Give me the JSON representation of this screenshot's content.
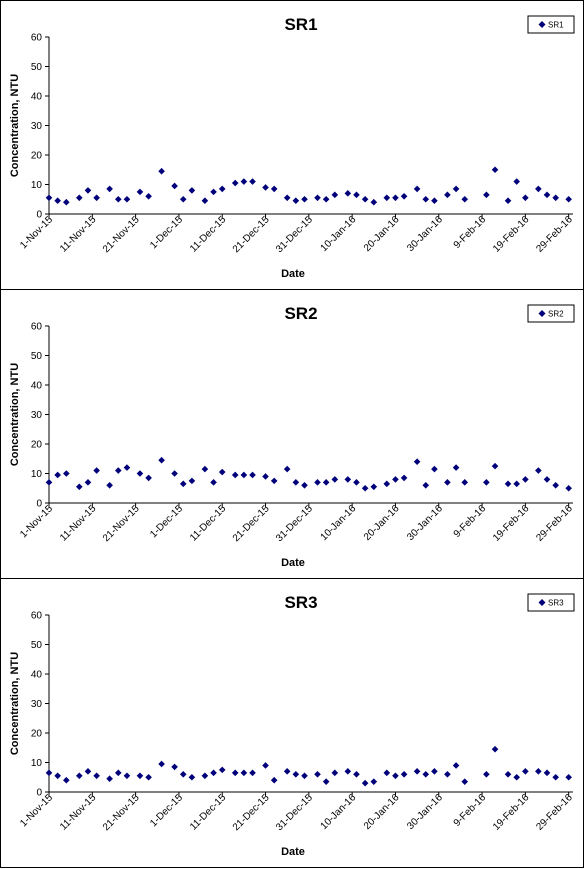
{
  "colors": {
    "marker": "#00007a",
    "axis": "#000000",
    "background": "#ffffff"
  },
  "chart_data": [
    {
      "type": "scatter",
      "title": "SR1",
      "xlabel": "Date",
      "ylabel": "Concentration, NTU",
      "ylim": [
        0,
        60
      ],
      "yticks": [
        "0",
        "10",
        "20",
        "30",
        "40",
        "50",
        "60"
      ],
      "xlim": [
        "2015-11-01",
        "2016-03-01"
      ],
      "xticks": [
        "1-Nov-15",
        "11-Nov-15",
        "21-Nov-15",
        "1-Dec-15",
        "11-Dec-15",
        "21-Dec-15",
        "31-Dec-15",
        "10-Jan-16",
        "20-Jan-16",
        "30-Jan-16",
        "9-Feb-16",
        "19-Feb-16",
        "29-Feb-16"
      ],
      "grid": false,
      "legend": "top-right",
      "series": [
        {
          "name": "SR1",
          "marker": "diamond",
          "x": [
            "2015-11-01",
            "2015-11-03",
            "2015-11-05",
            "2015-11-08",
            "2015-11-10",
            "2015-11-12",
            "2015-11-15",
            "2015-11-17",
            "2015-11-19",
            "2015-11-22",
            "2015-11-24",
            "2015-11-27",
            "2015-11-30",
            "2015-12-02",
            "2015-12-04",
            "2015-12-07",
            "2015-12-09",
            "2015-12-11",
            "2015-12-14",
            "2015-12-16",
            "2015-12-18",
            "2015-12-21",
            "2015-12-23",
            "2015-12-26",
            "2015-12-28",
            "2015-12-30",
            "2016-01-02",
            "2016-01-04",
            "2016-01-06",
            "2016-01-09",
            "2016-01-11",
            "2016-01-13",
            "2016-01-15",
            "2016-01-18",
            "2016-01-20",
            "2016-01-22",
            "2016-01-25",
            "2016-01-27",
            "2016-01-29",
            "2016-02-01",
            "2016-02-03",
            "2016-02-05",
            "2016-02-10",
            "2016-02-12",
            "2016-02-15",
            "2016-02-17",
            "2016-02-19",
            "2016-02-22",
            "2016-02-24",
            "2016-02-26",
            "2016-02-29"
          ],
          "y": [
            5.5,
            4.5,
            4,
            5.5,
            8,
            5.5,
            8.5,
            5,
            5,
            7.5,
            6,
            14.5,
            9.5,
            5,
            8,
            4.5,
            7.5,
            8.5,
            10.5,
            11,
            11,
            9,
            8.5,
            5.5,
            4.5,
            5,
            5.5,
            5,
            6.5,
            7,
            6.5,
            5,
            4,
            5.5,
            5.5,
            6,
            8.5,
            5,
            4.5,
            6.5,
            8.5,
            5,
            6.5,
            15,
            4.5,
            11,
            5.5,
            8.5,
            6.5,
            5.5,
            5
          ]
        }
      ]
    },
    {
      "type": "scatter",
      "title": "SR2",
      "xlabel": "Date",
      "ylabel": "Concentration, NTU",
      "ylim": [
        0,
        60
      ],
      "yticks": [
        "0",
        "10",
        "20",
        "30",
        "40",
        "50",
        "60"
      ],
      "xlim": [
        "2015-11-01",
        "2016-03-01"
      ],
      "xticks": [
        "1-Nov-15",
        "11-Nov-15",
        "21-Nov-15",
        "1-Dec-15",
        "11-Dec-15",
        "21-Dec-15",
        "31-Dec-15",
        "10-Jan-16",
        "20-Jan-16",
        "30-Jan-16",
        "9-Feb-16",
        "19-Feb-16",
        "29-Feb-16"
      ],
      "grid": false,
      "legend": "top-right",
      "series": [
        {
          "name": "SR2",
          "marker": "diamond",
          "x": [
            "2015-11-01",
            "2015-11-03",
            "2015-11-05",
            "2015-11-08",
            "2015-11-10",
            "2015-11-12",
            "2015-11-15",
            "2015-11-17",
            "2015-11-19",
            "2015-11-22",
            "2015-11-24",
            "2015-11-27",
            "2015-11-30",
            "2015-12-02",
            "2015-12-04",
            "2015-12-07",
            "2015-12-09",
            "2015-12-11",
            "2015-12-14",
            "2015-12-16",
            "2015-12-18",
            "2015-12-21",
            "2015-12-23",
            "2015-12-26",
            "2015-12-28",
            "2015-12-30",
            "2016-01-02",
            "2016-01-04",
            "2016-01-06",
            "2016-01-09",
            "2016-01-11",
            "2016-01-13",
            "2016-01-15",
            "2016-01-18",
            "2016-01-20",
            "2016-01-22",
            "2016-01-25",
            "2016-01-27",
            "2016-01-29",
            "2016-02-01",
            "2016-02-03",
            "2016-02-05",
            "2016-02-10",
            "2016-02-12",
            "2016-02-15",
            "2016-02-17",
            "2016-02-19",
            "2016-02-22",
            "2016-02-24",
            "2016-02-26",
            "2016-02-29"
          ],
          "y": [
            7,
            9.5,
            10,
            5.5,
            7,
            11,
            6,
            11,
            12,
            10,
            8.5,
            14.5,
            10,
            6.5,
            7.5,
            11.5,
            7,
            10.5,
            9.5,
            9.5,
            9.5,
            9,
            7.5,
            11.5,
            7,
            6,
            7,
            7,
            8,
            8,
            7,
            5,
            5.5,
            6.5,
            8,
            8.5,
            14,
            6,
            11.5,
            7,
            12,
            7,
            7,
            12.5,
            6.5,
            6.5,
            8,
            11,
            8,
            6,
            5
          ]
        }
      ]
    },
    {
      "type": "scatter",
      "title": "SR3",
      "xlabel": "Date",
      "ylabel": "Concentration, NTU",
      "ylim": [
        0,
        60
      ],
      "yticks": [
        "0",
        "10",
        "20",
        "30",
        "40",
        "50",
        "60"
      ],
      "xlim": [
        "2015-11-01",
        "2016-03-01"
      ],
      "xticks": [
        "1-Nov-15",
        "11-Nov-15",
        "21-Nov-15",
        "1-Dec-15",
        "11-Dec-15",
        "21-Dec-15",
        "31-Dec-15",
        "10-Jan-16",
        "20-Jan-16",
        "30-Jan-16",
        "9-Feb-16",
        "19-Feb-16",
        "29-Feb-16"
      ],
      "grid": false,
      "legend": "top-right",
      "series": [
        {
          "name": "SR3",
          "marker": "diamond",
          "x": [
            "2015-11-01",
            "2015-11-03",
            "2015-11-05",
            "2015-11-08",
            "2015-11-10",
            "2015-11-12",
            "2015-11-15",
            "2015-11-17",
            "2015-11-19",
            "2015-11-22",
            "2015-11-24",
            "2015-11-27",
            "2015-11-30",
            "2015-12-02",
            "2015-12-04",
            "2015-12-07",
            "2015-12-09",
            "2015-12-11",
            "2015-12-14",
            "2015-12-16",
            "2015-12-18",
            "2015-12-21",
            "2015-12-23",
            "2015-12-26",
            "2015-12-28",
            "2015-12-30",
            "2016-01-02",
            "2016-01-04",
            "2016-01-06",
            "2016-01-09",
            "2016-01-11",
            "2016-01-13",
            "2016-01-15",
            "2016-01-18",
            "2016-01-20",
            "2016-01-22",
            "2016-01-25",
            "2016-01-27",
            "2016-01-29",
            "2016-02-01",
            "2016-02-03",
            "2016-02-05",
            "2016-02-10",
            "2016-02-12",
            "2016-02-15",
            "2016-02-17",
            "2016-02-19",
            "2016-02-22",
            "2016-02-24",
            "2016-02-26",
            "2016-02-29"
          ],
          "y": [
            6.5,
            5.5,
            4,
            5.5,
            7,
            5.5,
            4.5,
            6.5,
            5.5,
            5.5,
            5,
            9.5,
            8.5,
            6,
            5,
            5.5,
            6.5,
            7.5,
            6.5,
            6.5,
            6.5,
            9,
            4,
            7,
            6,
            5.5,
            6,
            3.5,
            6.5,
            7,
            6,
            3,
            3.5,
            6.5,
            5.5,
            6,
            7,
            6,
            7,
            6,
            9,
            3.5,
            6,
            14.5,
            6,
            5,
            7,
            7,
            6.5,
            5,
            5
          ]
        }
      ]
    }
  ]
}
